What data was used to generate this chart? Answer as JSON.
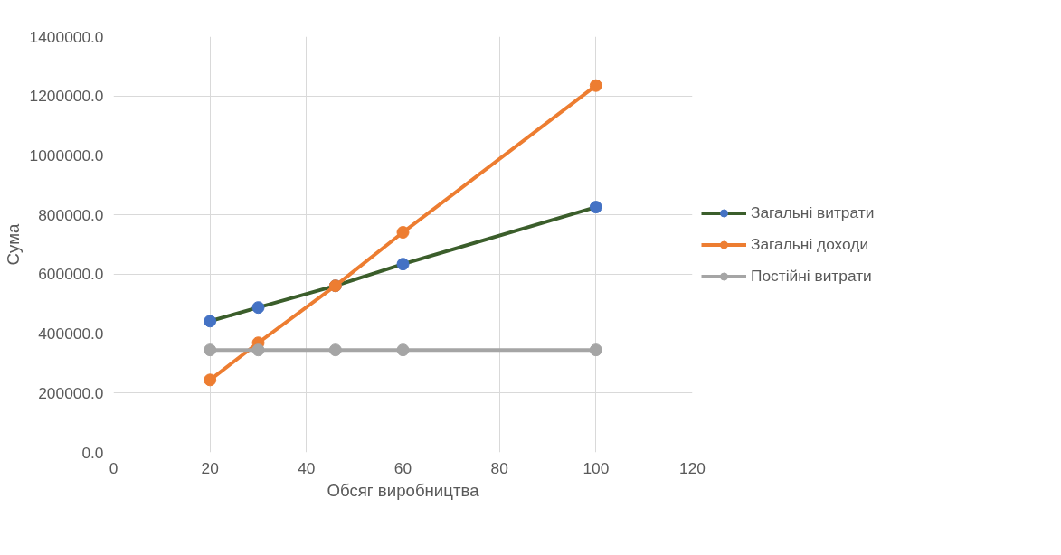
{
  "chart_data": {
    "type": "line",
    "xlabel": "Обсяг виробництва",
    "ylabel": "Сума",
    "x": [
      20,
      30,
      46,
      60,
      100
    ],
    "series": [
      {
        "name": "Загальні витрати",
        "color": "#3b5e2b",
        "colors": [
          "#4472c4",
          "#4472c4",
          "#4472c4",
          "#4472c4",
          "#4472c4"
        ],
        "values": [
          442000,
          488000,
          561000,
          634000,
          826000
        ]
      },
      {
        "name": "Загальні доходи",
        "color": "#ed7d31",
        "colors": [
          "#ed7d31",
          "#ed7d31",
          "#ed7d31",
          "#ed7d31",
          "#ed7d31"
        ],
        "values": [
          244000,
          369000,
          561000,
          741000,
          1235000
        ]
      },
      {
        "name": "Постійні витрати",
        "color": "#a5a5a5",
        "colors": [
          "#a5a5a5",
          "#a5a5a5",
          "#a5a5a5",
          "#a5a5a5",
          "#a5a5a5"
        ],
        "values": [
          345000,
          345000,
          345000,
          345000,
          345000
        ]
      }
    ],
    "xlim": [
      0,
      120
    ],
    "xticks": [
      0,
      20,
      40,
      60,
      80,
      100,
      120
    ],
    "ylim": [
      0,
      1400000
    ],
    "yticks": [
      {
        "value": 0,
        "label": "0.0"
      },
      {
        "value": 200000,
        "label": "200000.0"
      },
      {
        "value": 400000,
        "label": "400000.0"
      },
      {
        "value": 600000,
        "label": "600000.0"
      },
      {
        "value": 800000,
        "label": "800000.0"
      },
      {
        "value": 1000000,
        "label": "1000000.0"
      },
      {
        "value": 1200000,
        "label": "1200000.0"
      },
      {
        "value": 1400000,
        "label": "1400000.0"
      }
    ],
    "grid": true,
    "legend": "right",
    "marker": "circle",
    "line_style": "solid"
  }
}
